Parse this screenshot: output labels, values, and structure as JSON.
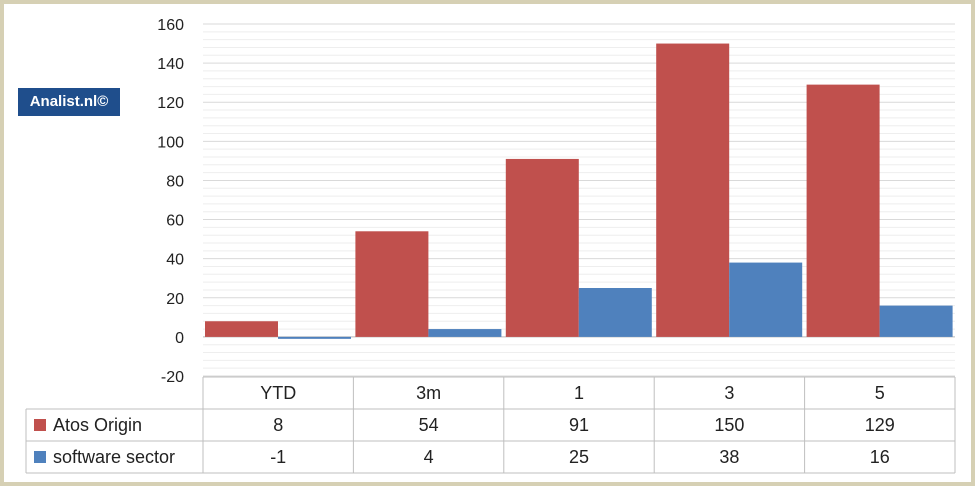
{
  "brand": "Analist.nl©",
  "chart_data": {
    "type": "bar",
    "title": "",
    "xlabel": "",
    "ylabel": "",
    "ylim": [
      -20,
      160
    ],
    "yticks": [
      -20,
      0,
      20,
      40,
      60,
      80,
      100,
      120,
      140,
      160
    ],
    "grid": true,
    "legend_placement": "data-table-left",
    "categories": [
      "YTD",
      "3m",
      "1",
      "3",
      "5"
    ],
    "series": [
      {
        "name": "Atos Origin",
        "color": "#c0504d",
        "values": [
          8,
          54,
          91,
          150,
          129
        ]
      },
      {
        "name": "software sector",
        "color": "#4f81bd",
        "values": [
          -1,
          4,
          25,
          38,
          16
        ]
      }
    ]
  }
}
